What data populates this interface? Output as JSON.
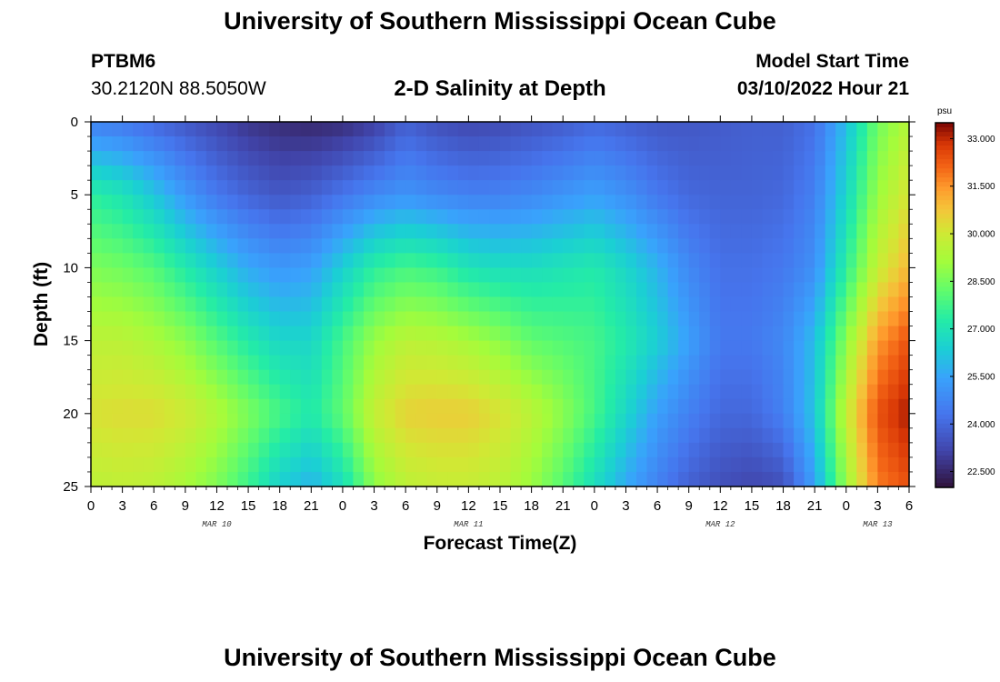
{
  "header": {
    "title": "University of Southern Mississippi Ocean Cube",
    "station": "PTBM6",
    "coordinates": "30.2120N  88.5050W",
    "subtitle": "2-D Salinity at Depth",
    "model_start_label": "Model Start Time",
    "model_start_value": "03/10/2022 Hour 21"
  },
  "footer": {
    "title": "University of Southern Mississippi Ocean Cube"
  },
  "colors": {
    "background": "#ffffff",
    "axis": "#000000"
  },
  "chart_data": {
    "type": "heatmap",
    "title": "2-D Salinity at Depth",
    "xlabel": "Forecast Time(Z)",
    "ylabel": "Depth (ft)",
    "x_tick_labels": [
      "0",
      "3",
      "6",
      "9",
      "12",
      "15",
      "18",
      "21",
      "0",
      "3",
      "6",
      "9",
      "12",
      "15",
      "18",
      "21",
      "0",
      "3",
      "6",
      "9",
      "12",
      "15",
      "18",
      "21",
      "0",
      "3",
      "6"
    ],
    "x_hours_range": [
      0,
      78
    ],
    "date_labels": [
      {
        "label": "MAR 10",
        "hour": 12
      },
      {
        "label": "MAR 11",
        "hour": 36
      },
      {
        "label": "MAR 12",
        "hour": 60
      },
      {
        "label": "MAR 13",
        "hour": 75
      }
    ],
    "y_ticks": [
      0,
      5,
      10,
      15,
      20,
      25
    ],
    "ylim": [
      0,
      25
    ],
    "y_inverted": true,
    "colorbar": {
      "unit": "psu",
      "min": 22.0,
      "max": 33.5,
      "ticks": [
        "33.000",
        "31.500",
        "30.000",
        "28.500",
        "27.000",
        "25.500",
        "24.000",
        "22.500"
      ]
    },
    "salinity_grid": {
      "depth_rows": [
        0,
        5,
        10,
        15,
        20,
        25
      ],
      "hours": [
        0,
        3,
        6,
        9,
        12,
        15,
        18,
        21,
        24,
        27,
        30,
        33,
        36,
        39,
        42,
        45,
        48,
        51,
        54,
        57,
        60,
        63,
        66,
        69,
        72,
        75,
        78
      ],
      "values": [
        [
          24.6,
          24.4,
          24.0,
          23.6,
          23.2,
          22.8,
          22.6,
          22.5,
          22.6,
          23.0,
          23.8,
          23.4,
          23.2,
          23.3,
          23.5,
          23.7,
          24.0,
          23.8,
          23.6,
          23.6,
          23.7,
          23.8,
          23.8,
          24.2,
          26.0,
          28.4,
          29.5
        ],
        [
          27.4,
          27.0,
          26.2,
          25.2,
          24.4,
          23.9,
          23.6,
          23.8,
          24.3,
          24.8,
          25.1,
          24.8,
          24.6,
          24.6,
          24.8,
          25.1,
          25.4,
          25.0,
          24.4,
          24.0,
          23.9,
          23.9,
          24.0,
          24.6,
          26.6,
          29.0,
          30.2
        ],
        [
          28.6,
          28.4,
          28.0,
          27.2,
          26.4,
          25.6,
          25.2,
          25.4,
          26.4,
          27.4,
          27.8,
          27.6,
          27.0,
          26.8,
          26.8,
          27.0,
          27.2,
          26.6,
          25.8,
          24.8,
          24.2,
          24.2,
          24.4,
          25.0,
          27.4,
          29.8,
          31.0
        ],
        [
          29.6,
          29.6,
          29.3,
          28.8,
          28.0,
          27.2,
          26.6,
          26.6,
          27.8,
          29.0,
          29.6,
          29.5,
          29.2,
          28.8,
          28.2,
          28.0,
          27.8,
          27.2,
          26.4,
          25.4,
          24.4,
          24.4,
          24.8,
          26.0,
          28.8,
          31.4,
          32.4
        ],
        [
          30.2,
          30.3,
          30.3,
          30.0,
          29.4,
          28.6,
          27.8,
          27.2,
          28.2,
          29.8,
          30.5,
          30.6,
          30.6,
          30.2,
          29.6,
          28.8,
          27.8,
          26.6,
          25.4,
          24.6,
          24.0,
          24.0,
          24.6,
          26.2,
          29.8,
          32.4,
          33.2
        ],
        [
          29.6,
          29.7,
          29.6,
          29.2,
          28.6,
          27.6,
          26.4,
          25.8,
          26.8,
          28.8,
          29.6,
          29.8,
          29.8,
          29.6,
          29.0,
          28.0,
          26.8,
          25.6,
          24.6,
          23.8,
          23.4,
          23.2,
          23.4,
          25.4,
          29.0,
          31.8,
          32.4
        ]
      ]
    }
  }
}
